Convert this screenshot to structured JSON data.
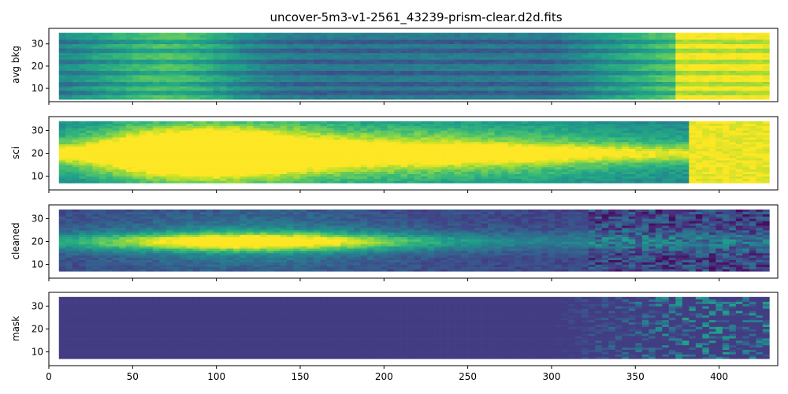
{
  "title": "uncover-5m3-v1-2561_43239-prism-clear.d2d.fits",
  "chart_data": {
    "type": "heatmap",
    "title": "uncover-5m3-v1-2561_43239-prism-clear.d2d.fits",
    "colormap": "viridis",
    "xlabel": "",
    "xlim": [
      0,
      435
    ],
    "x_ticks": [
      0,
      50,
      100,
      150,
      200,
      250,
      300,
      350,
      400
    ],
    "shared_x": true,
    "panels": [
      {
        "name": "avg_bkg",
        "ylabel": "avg bkg",
        "ylim": [
          4,
          37
        ],
        "y_ticks": [
          10,
          20,
          30
        ],
        "coverage": {
          "x": [
            6,
            428
          ],
          "y": [
            5,
            35
          ]
        }
      },
      {
        "name": "sci",
        "ylabel": "sci",
        "ylim": [
          4,
          36
        ],
        "y_ticks": [
          10,
          20,
          30
        ],
        "coverage": {
          "x": [
            6,
            428
          ],
          "y": [
            7,
            34
          ]
        }
      },
      {
        "name": "cleaned",
        "ylabel": "cleaned",
        "ylim": [
          4,
          36
        ],
        "y_ticks": [
          10,
          20,
          30
        ],
        "coverage": {
          "x": [
            6,
            428
          ],
          "y": [
            7,
            34
          ]
        }
      },
      {
        "name": "mask",
        "ylabel": "mask",
        "ylim": [
          4,
          36
        ],
        "y_ticks": [
          10,
          20,
          30
        ],
        "coverage": {
          "x": [
            6,
            428
          ],
          "y": [
            7,
            34
          ]
        }
      }
    ]
  }
}
